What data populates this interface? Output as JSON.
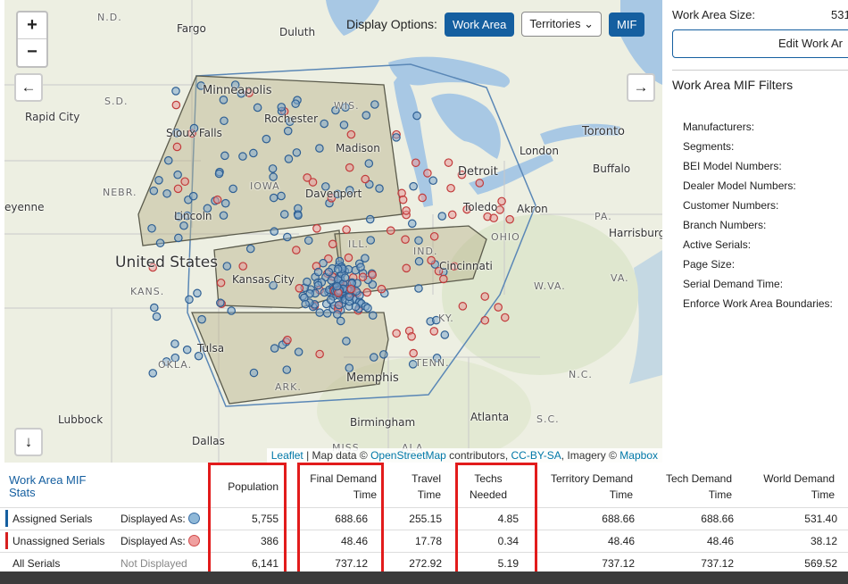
{
  "map": {
    "zoom_in": "+",
    "zoom_out": "−",
    "display_options_label": "Display Options:",
    "work_area_btn": "Work Area",
    "territories_btn": "Territories",
    "mif_btn": "MIF",
    "attribution": {
      "leaflet": "Leaflet",
      "sep": " | Map data © ",
      "osm": "OpenStreetMap",
      "contributors": " contributors, ",
      "license": "CC-BY-SA",
      "imagery": ", Imagery © ",
      "mapbox": "Mapbox"
    },
    "labels": {
      "nd": "N.D.",
      "fargo": "Fargo",
      "duluth": "Duluth",
      "sd": "S.D.",
      "rapid_city": "Rapid City",
      "minneapolis": "Minneapolis",
      "rochester": "Rochester",
      "wis": "WIS.",
      "sioux_falls": "Sioux Falls",
      "madison": "Madison",
      "london": "London",
      "toronto": "Toronto",
      "buffalo": "Buffalo",
      "detroit": "Detroit",
      "iowa": "IOWA",
      "davenport": "Davenport",
      "nebr": "NEBR.",
      "lincoln": "Lincoln",
      "toledo": "Toledo",
      "akron": "Akron",
      "pa": "PA.",
      "harrisburg": "Harrisburg",
      "ill": "ILL.",
      "ind": "IND.",
      "ohio": "OHIO",
      "enne": "eyenne",
      "united_states": "United States",
      "cincinnati": "Cincinnati",
      "kansas_city": "Kansas City",
      "kans": "KANS.",
      "wva": "W.VA.",
      "va": "VA.",
      "ky": "KY.",
      "tulsa": "Tulsa",
      "okla": "OKLA.",
      "tenn": "TENN.",
      "nc": "N.C.",
      "ark": "ARK.",
      "memphis": "Memphis",
      "lubbock": "Lubbock",
      "atlanta": "Atlanta",
      "sc": "S.C.",
      "birmingham": "Birmingham",
      "dallas": "Dallas",
      "miss": "MISS",
      "ala": "ALA"
    }
  },
  "side": {
    "work_area_size_label": "Work Area Size:",
    "work_area_size_value": "531",
    "edit_button": "Edit Work Ar",
    "mif_filters_title": "Work Area MIF Filters",
    "filters": [
      "Manufacturers:",
      "Segments:",
      "BEI Model Numbers:",
      "Dealer Model Numbers:",
      "Customer Numbers:",
      "Branch Numbers:",
      "Active Serials:",
      "Page Size:",
      "Serial Demand Time:",
      "Enforce Work Area Boundaries:"
    ]
  },
  "stats": {
    "title_line1": "Work Area MIF",
    "title_line2": "Stats",
    "headers": {
      "population": "Population",
      "final_demand_1": "Final Demand",
      "final_demand_2": "Time",
      "travel_1": "Travel",
      "travel_2": "Time",
      "techs_1": "Techs",
      "techs_2": "Needed",
      "territory_1": "Territory Demand",
      "territory_2": "Time",
      "tech_1": "Tech Demand",
      "tech_2": "Time",
      "world_1": "World Demand",
      "world_2": "Time"
    },
    "rows": [
      {
        "label": "Assigned Serials",
        "display": "Displayed As:",
        "population": "5,755",
        "final_demand": "688.66",
        "travel": "255.15",
        "techs": "4.85",
        "territory": "688.66",
        "tech": "688.66",
        "world": "531.40",
        "color": "#155fa0",
        "circle": "#8fb8d8"
      },
      {
        "label": "Unassigned Serials",
        "display": "Displayed As:",
        "population": "386",
        "final_demand": "48.46",
        "travel": "17.78",
        "techs": "0.34",
        "territory": "48.46",
        "tech": "48.46",
        "world": "38.12",
        "color": "#d61f1f",
        "circle": "#f0a0a0"
      },
      {
        "label": "All Serials",
        "display": "Not Displayed",
        "population": "6,141",
        "final_demand": "737.12",
        "travel": "272.92",
        "techs": "5.19",
        "territory": "737.12",
        "tech": "737.12",
        "world": "569.52"
      }
    ]
  },
  "colors": {
    "accent": "#155fa0",
    "highlight": "#e21b1b",
    "assigned": "#3b6fa6",
    "unassigned": "#d14a4a"
  }
}
